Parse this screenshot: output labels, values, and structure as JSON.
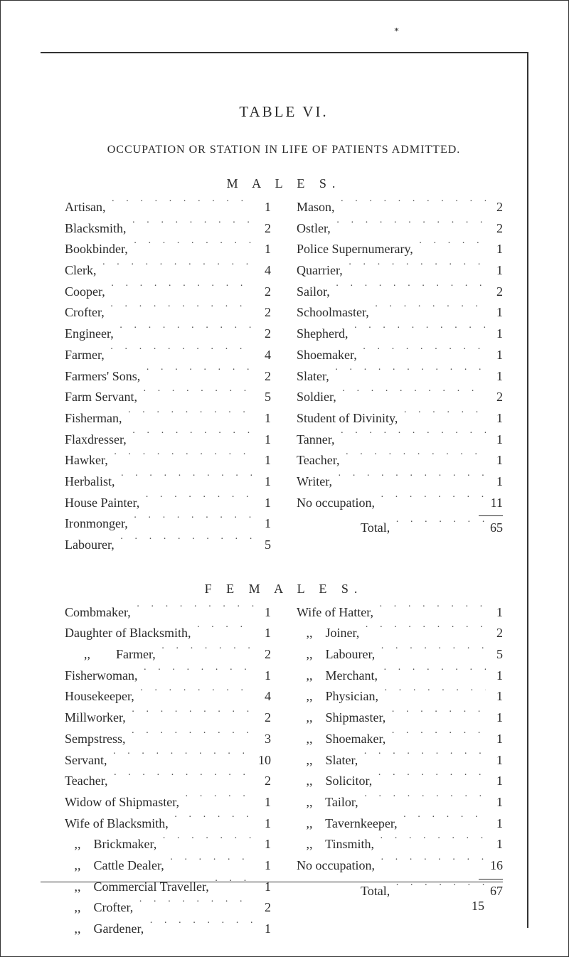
{
  "title": "TABLE VI.",
  "subtitle": "OCCUPATION OR STATION IN LIFE OF PATIENTS ADMITTED.",
  "sections": {
    "males": {
      "label": "M A L E S.",
      "left": [
        {
          "label": "Artisan,",
          "value": 1
        },
        {
          "label": "Blacksmith,",
          "value": 2
        },
        {
          "label": "Bookbinder,",
          "value": 1
        },
        {
          "label": "Clerk,",
          "value": 4
        },
        {
          "label": "Cooper,",
          "value": 2
        },
        {
          "label": "Crofter,",
          "value": 2
        },
        {
          "label": "Engineer,",
          "value": 2
        },
        {
          "label": "Farmer,",
          "value": 4
        },
        {
          "label": "Farmers' Sons,",
          "value": 2
        },
        {
          "label": "Farm Servant,",
          "value": 5
        },
        {
          "label": "Fisherman,",
          "value": 1
        },
        {
          "label": "Flaxdresser,",
          "value": 1
        },
        {
          "label": "Hawker,",
          "value": 1
        },
        {
          "label": "Herbalist,",
          "value": 1
        },
        {
          "label": "House Painter,",
          "value": 1
        },
        {
          "label": "Ironmonger,",
          "value": 1
        },
        {
          "label": "Labourer,",
          "value": 5
        }
      ],
      "right": [
        {
          "label": "Mason,",
          "value": 2
        },
        {
          "label": "Ostler,",
          "value": 2
        },
        {
          "label": "Police Supernumerary,",
          "value": 1
        },
        {
          "label": "Quarrier,",
          "value": 1
        },
        {
          "label": "Sailor,",
          "value": 2
        },
        {
          "label": "Schoolmaster,",
          "value": 1
        },
        {
          "label": "Shepherd,",
          "value": 1
        },
        {
          "label": "Shoemaker,",
          "value": 1
        },
        {
          "label": "Slater,",
          "value": 1
        },
        {
          "label": "Soldier,",
          "value": 2
        },
        {
          "label": "Student of Divinity,",
          "value": 1
        },
        {
          "label": "Tanner,",
          "value": 1
        },
        {
          "label": "Teacher,",
          "value": 1
        },
        {
          "label": "Writer,",
          "value": 1
        },
        {
          "label": "No occupation,",
          "value": 11
        }
      ],
      "total_label": "Total,",
      "total": 65
    },
    "females": {
      "label": "F E M A L E S.",
      "left": [
        {
          "label": "Combmaker,",
          "value": 1
        },
        {
          "label": "Daughter of Blacksmith,",
          "value": 1
        },
        {
          "label": "      ,,        Farmer,",
          "value": 2
        },
        {
          "label": "Fisherwoman,",
          "value": 1
        },
        {
          "label": "Housekeeper,",
          "value": 4
        },
        {
          "label": "Millworker,",
          "value": 2
        },
        {
          "label": "Sempstress,",
          "value": 3
        },
        {
          "label": "Servant,",
          "value": 10
        },
        {
          "label": "Teacher,",
          "value": 2
        },
        {
          "label": "Widow of Shipmaster,",
          "value": 1
        },
        {
          "label": "Wife of Blacksmith,",
          "value": 1
        },
        {
          "label": "   ,,    Brickmaker,",
          "value": 1
        },
        {
          "label": "   ,,    Cattle Dealer,",
          "value": 1
        },
        {
          "label": "   ,,    Commercial Traveller,",
          "value": 1
        },
        {
          "label": "   ,,    Crofter,",
          "value": 2
        },
        {
          "label": "   ,,    Gardener,",
          "value": 1
        }
      ],
      "right": [
        {
          "label": "Wife of Hatter,",
          "value": 1
        },
        {
          "label": "   ,,    Joiner,",
          "value": 2
        },
        {
          "label": "   ,,    Labourer,",
          "value": 5
        },
        {
          "label": "   ,,    Merchant,",
          "value": 1
        },
        {
          "label": "   ,,    Physician,",
          "value": 1
        },
        {
          "label": "   ,,    Shipmaster,",
          "value": 1
        },
        {
          "label": "   ,,    Shoemaker,",
          "value": 1
        },
        {
          "label": "   ,,    Slater,",
          "value": 1
        },
        {
          "label": "   ,,    Solicitor,",
          "value": 1
        },
        {
          "label": "   ,,    Tailor,",
          "value": 1
        },
        {
          "label": "   ,,    Tavernkeeper,",
          "value": 1
        },
        {
          "label": "   ,,    Tinsmith,",
          "value": 1
        },
        {
          "label": "No occupation,",
          "value": 16
        }
      ],
      "total_label": "Total,",
      "total": 67
    }
  },
  "page_number": "15"
}
